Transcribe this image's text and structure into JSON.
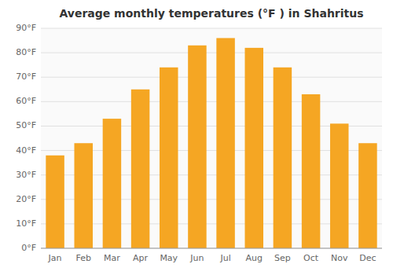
{
  "chart_data": {
    "type": "bar",
    "title": "Average monthly temperatures (°F ) in Shahritus",
    "categories": [
      "Jan",
      "Feb",
      "Mar",
      "Apr",
      "May",
      "Jun",
      "Jul",
      "Aug",
      "Sep",
      "Oct",
      "Nov",
      "Dec"
    ],
    "values": [
      38,
      43,
      53,
      65,
      74,
      83,
      86,
      82,
      74,
      63,
      51,
      43
    ],
    "color": "#F5A623",
    "ylim": [
      0,
      90
    ],
    "yticks": [
      {
        "value": 0,
        "label": "0°F"
      },
      {
        "value": 10,
        "label": "10°F"
      },
      {
        "value": 20,
        "label": "20°F"
      },
      {
        "value": 30,
        "label": "30°F"
      },
      {
        "value": 40,
        "label": "40°F"
      },
      {
        "value": 50,
        "label": "50°F"
      },
      {
        "value": 60,
        "label": "60°F"
      },
      {
        "value": 70,
        "label": "70°F"
      },
      {
        "value": 80,
        "label": "80°F"
      },
      {
        "value": 90,
        "label": "90°F"
      }
    ],
    "grid": true
  }
}
